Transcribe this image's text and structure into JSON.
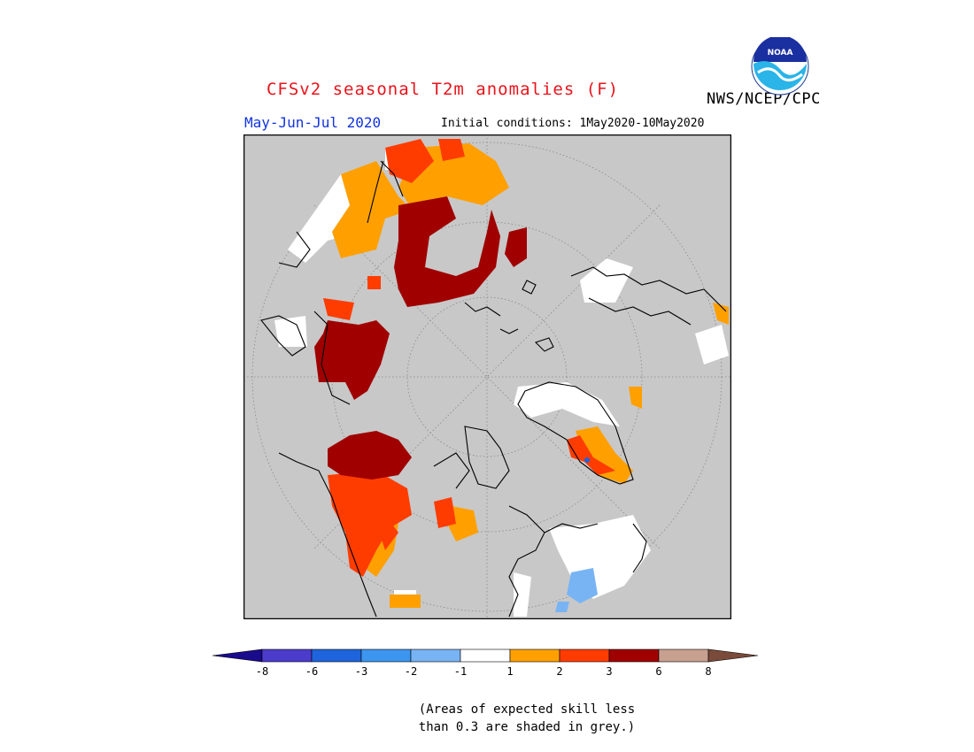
{
  "title": "CFSv2 seasonal T2m anomalies (F)",
  "agency": "NWS/NCEP/CPC",
  "season": "May-Jun-Jul 2020",
  "initial_conditions": "Initial conditions: 1May2020-10May2020",
  "note_line1": "(Areas of expected skill less",
  "note_line2": "than 0.3 are shaded in grey.)",
  "logo_text": "NOAA",
  "colors": {
    "grey_mask": "#c8c8c8",
    "coast": "#000000"
  },
  "colorbar": {
    "labels": [
      "-8",
      "-6",
      "-3",
      "-2",
      "-1",
      "1",
      "2",
      "3",
      "6",
      "8"
    ],
    "low_extend_color": "#1a0a8c",
    "high_extend_color": "#7a4a3a",
    "bins": [
      "#4c3ccc",
      "#1e64dc",
      "#3c96f0",
      "#78b4f4",
      "#ffffff",
      "#ffa000",
      "#ff3c00",
      "#a00000",
      "#c8a090"
    ]
  },
  "map_regions": [
    {
      "name": "siberia-warm",
      "category": "6"
    },
    {
      "name": "north-america-warm",
      "category": "3"
    },
    {
      "name": "greenland-mixed",
      "category": "2"
    },
    {
      "name": "scandinavia-neutral",
      "category": "-1"
    },
    {
      "name": "europe-cool",
      "category": "-2"
    }
  ]
}
